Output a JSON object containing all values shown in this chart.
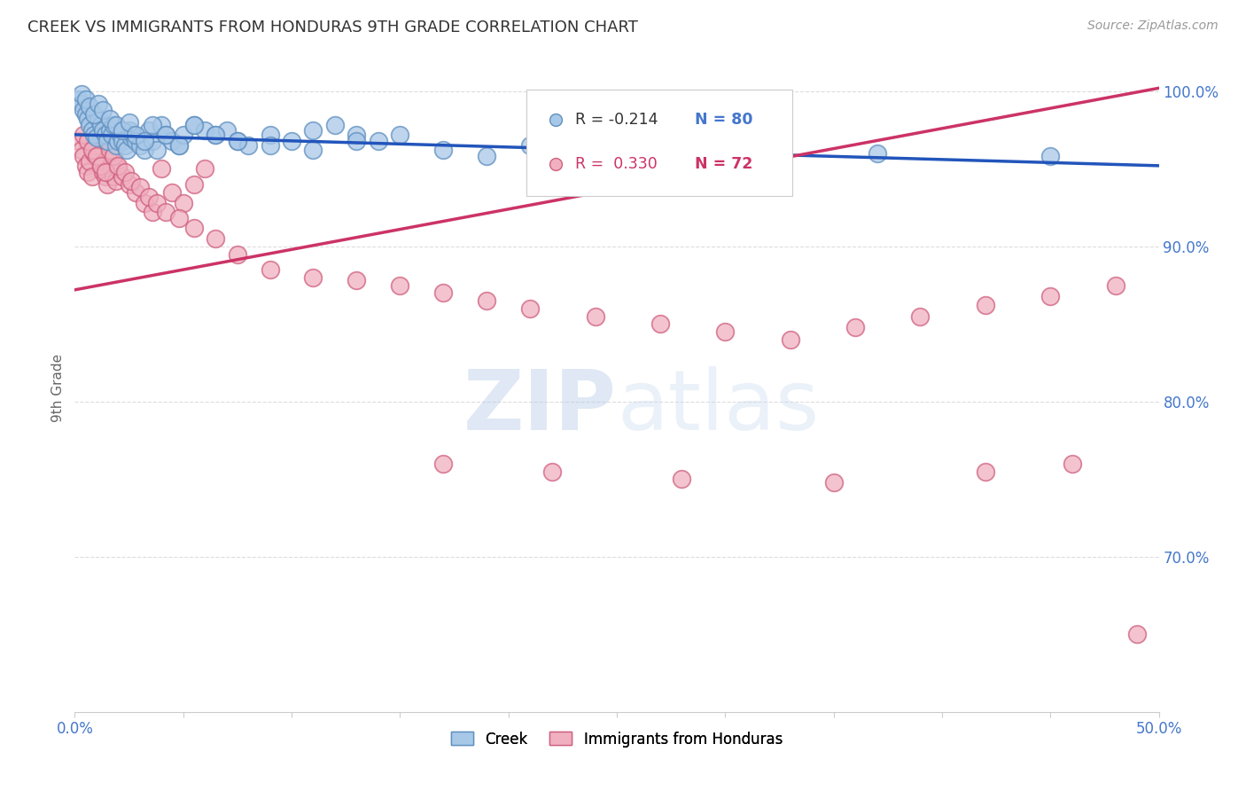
{
  "title": "CREEK VS IMMIGRANTS FROM HONDURAS 9TH GRADE CORRELATION CHART",
  "source": "Source: ZipAtlas.com",
  "ylabel": "9th Grade",
  "xmin": 0.0,
  "xmax": 0.5,
  "ymin": 0.6,
  "ymax": 1.018,
  "ytick_values": [
    0.7,
    0.8,
    0.9,
    1.0
  ],
  "ytick_labels": [
    "70.0%",
    "80.0%",
    "90.0%",
    "100.0%"
  ],
  "creek_color": "#a8c8e8",
  "creek_edge_color": "#6090c0",
  "honduras_color": "#f0b0c0",
  "honduras_edge_color": "#d06080",
  "creek_trend_color": "#2255bb",
  "honduras_trend_color": "#cc3366",
  "background_color": "#ffffff",
  "creek_trend_y0": 0.972,
  "creek_trend_y1": 0.952,
  "honduras_trend_y0": 0.872,
  "honduras_trend_y1": 1.002,
  "creek_x": [
    0.002,
    0.003,
    0.004,
    0.005,
    0.006,
    0.007,
    0.008,
    0.009,
    0.01,
    0.011,
    0.012,
    0.013,
    0.014,
    0.015,
    0.016,
    0.017,
    0.018,
    0.019,
    0.02,
    0.021,
    0.022,
    0.023,
    0.024,
    0.025,
    0.026,
    0.027,
    0.028,
    0.03,
    0.032,
    0.034,
    0.036,
    0.038,
    0.04,
    0.042,
    0.045,
    0.048,
    0.05,
    0.055,
    0.06,
    0.065,
    0.07,
    0.075,
    0.08,
    0.09,
    0.1,
    0.11,
    0.12,
    0.13,
    0.14,
    0.003,
    0.005,
    0.007,
    0.009,
    0.011,
    0.013,
    0.016,
    0.019,
    0.022,
    0.025,
    0.028,
    0.032,
    0.036,
    0.042,
    0.048,
    0.055,
    0.065,
    0.075,
    0.09,
    0.11,
    0.13,
    0.15,
    0.17,
    0.19,
    0.21,
    0.23,
    0.27,
    0.31,
    0.37,
    0.45
  ],
  "creek_y": [
    0.995,
    0.992,
    0.988,
    0.985,
    0.982,
    0.978,
    0.975,
    0.972,
    0.97,
    0.982,
    0.978,
    0.975,
    0.972,
    0.968,
    0.975,
    0.972,
    0.978,
    0.965,
    0.968,
    0.972,
    0.968,
    0.965,
    0.962,
    0.975,
    0.97,
    0.972,
    0.968,
    0.965,
    0.962,
    0.975,
    0.968,
    0.962,
    0.978,
    0.972,
    0.968,
    0.965,
    0.972,
    0.978,
    0.975,
    0.972,
    0.975,
    0.968,
    0.965,
    0.972,
    0.968,
    0.975,
    0.978,
    0.972,
    0.968,
    0.998,
    0.995,
    0.99,
    0.985,
    0.992,
    0.988,
    0.982,
    0.978,
    0.975,
    0.98,
    0.972,
    0.968,
    0.978,
    0.972,
    0.965,
    0.978,
    0.972,
    0.968,
    0.965,
    0.962,
    0.968,
    0.972,
    0.962,
    0.958,
    0.965,
    0.96,
    0.962,
    0.958,
    0.96,
    0.958
  ],
  "honduras_x": [
    0.002,
    0.003,
    0.004,
    0.005,
    0.006,
    0.007,
    0.008,
    0.009,
    0.01,
    0.011,
    0.012,
    0.013,
    0.014,
    0.015,
    0.016,
    0.017,
    0.018,
    0.019,
    0.02,
    0.022,
    0.025,
    0.028,
    0.032,
    0.036,
    0.04,
    0.045,
    0.05,
    0.055,
    0.06,
    0.004,
    0.006,
    0.008,
    0.01,
    0.012,
    0.014,
    0.016,
    0.018,
    0.02,
    0.023,
    0.026,
    0.03,
    0.034,
    0.038,
    0.042,
    0.048,
    0.055,
    0.065,
    0.075,
    0.09,
    0.11,
    0.13,
    0.15,
    0.17,
    0.19,
    0.21,
    0.24,
    0.27,
    0.3,
    0.33,
    0.36,
    0.39,
    0.42,
    0.45,
    0.48,
    0.17,
    0.22,
    0.28,
    0.35,
    0.42,
    0.46,
    0.49
  ],
  "honduras_y": [
    0.968,
    0.962,
    0.958,
    0.952,
    0.948,
    0.955,
    0.945,
    0.96,
    0.965,
    0.958,
    0.952,
    0.948,
    0.945,
    0.94,
    0.958,
    0.95,
    0.945,
    0.942,
    0.95,
    0.945,
    0.94,
    0.935,
    0.928,
    0.922,
    0.95,
    0.935,
    0.928,
    0.94,
    0.95,
    0.972,
    0.968,
    0.962,
    0.958,
    0.952,
    0.948,
    0.962,
    0.958,
    0.952,
    0.948,
    0.942,
    0.938,
    0.932,
    0.928,
    0.922,
    0.918,
    0.912,
    0.905,
    0.895,
    0.885,
    0.88,
    0.878,
    0.875,
    0.87,
    0.865,
    0.86,
    0.855,
    0.85,
    0.845,
    0.84,
    0.848,
    0.855,
    0.862,
    0.868,
    0.875,
    0.76,
    0.755,
    0.75,
    0.748,
    0.755,
    0.76,
    0.65
  ]
}
